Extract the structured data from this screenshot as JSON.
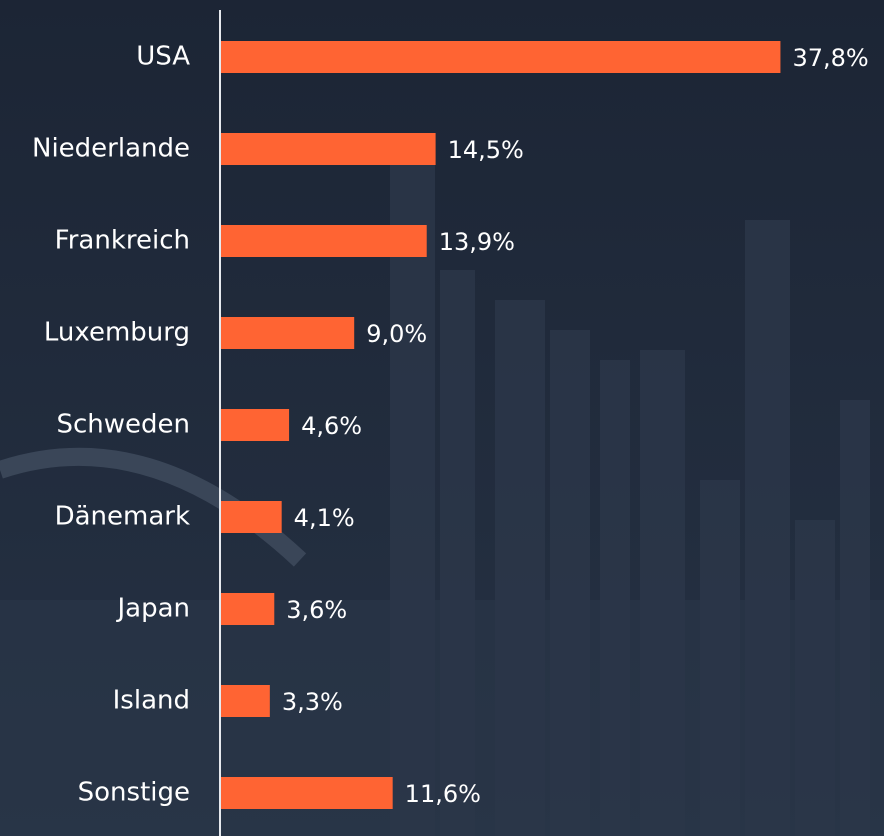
{
  "chart_data": {
    "type": "bar",
    "orientation": "horizontal",
    "categories": [
      "USA",
      "Niederlande",
      "Frankreich",
      "Luxemburg",
      "Schweden",
      "Dänemark",
      "Japan",
      "Island",
      "Sonstige"
    ],
    "values": [
      37.8,
      14.5,
      13.9,
      9.0,
      4.6,
      4.1,
      3.6,
      3.3,
      11.6
    ],
    "value_labels": [
      "37,8%",
      "14,5%",
      "13,9%",
      "9,0%",
      "4,6%",
      "4,1%",
      "3,6%",
      "3,3%",
      "11,6%"
    ],
    "color": "#ff6433",
    "xlim": [
      0,
      40
    ]
  }
}
